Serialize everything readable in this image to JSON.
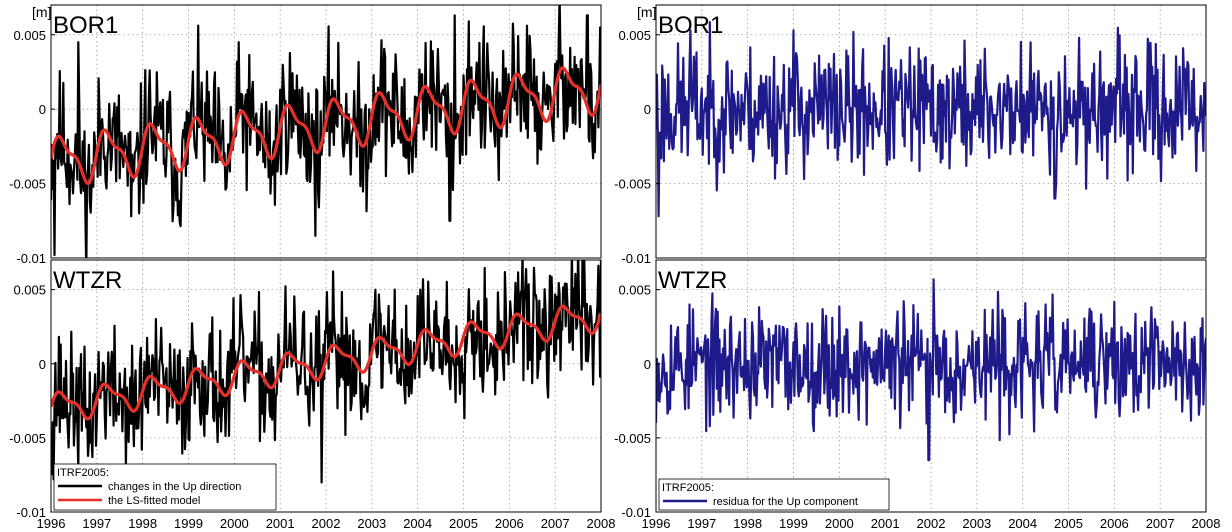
{
  "figure": {
    "y_unit": "[m]",
    "x_ticks": [
      "1996",
      "1997",
      "1998",
      "1999",
      "2000",
      "2001",
      "2002",
      "2003",
      "2004",
      "2005",
      "2006",
      "2007",
      "2008"
    ],
    "y_ticks": [
      "0.005",
      "0",
      "-0.005",
      "-0.01"
    ]
  },
  "colors": {
    "black_series": "#000000",
    "model_series": "#e8302a",
    "residual_series": "#1f1a8a",
    "grid": "#9a9a9a"
  },
  "chart_data": [
    {
      "type": "line",
      "panel": "top-left",
      "station": "BOR1",
      "ylabel": "[m]",
      "xlim": [
        1996,
        2008
      ],
      "ylim": [
        -0.01,
        0.007
      ],
      "grid": true,
      "series": [
        {
          "name": "changes in the Up direction",
          "color": "#000000",
          "kind": "noisy",
          "trend_start": -0.0035,
          "trend_end": 0.0015,
          "seasonal_amp": 0.0016,
          "noise": 0.0022,
          "seed": 11,
          "extremes": [
            [
              1996.08,
              -0.0098
            ],
            [
              1996.6,
              0.0045
            ],
            [
              1997.75,
              -0.0072
            ],
            [
              2001.85,
              -0.0066
            ],
            [
              2004.7,
              -0.0075
            ],
            [
              2004.8,
              0.0063
            ],
            [
              2007.7,
              0.0063
            ]
          ]
        },
        {
          "name": "the LS-fitted model",
          "color": "#e8302a",
          "kind": "smooth",
          "trend_start": -0.0035,
          "trend_end": 0.0015,
          "seasonal_amp": 0.0016
        }
      ]
    },
    {
      "type": "line",
      "panel": "top-right",
      "station": "BOR1",
      "ylabel": "[m]",
      "xlim": [
        1996,
        2008
      ],
      "ylim": [
        -0.01,
        0.007
      ],
      "grid": true,
      "series": [
        {
          "name": "residua for the Up component",
          "color": "#1f1a8a",
          "kind": "noisy",
          "trend_start": 0,
          "trend_end": 0,
          "seasonal_amp": 0,
          "noise": 0.0021,
          "seed": 23,
          "extremes": [
            [
              1996.05,
              -0.0072
            ],
            [
              1996.75,
              0.0053
            ],
            [
              1999.0,
              0.0053
            ],
            [
              2004.7,
              -0.006
            ]
          ]
        }
      ]
    },
    {
      "type": "line",
      "panel": "bottom-left",
      "station": "WTZR",
      "xlim": [
        1996,
        2008
      ],
      "ylim": [
        -0.01,
        0.007
      ],
      "grid": true,
      "series": [
        {
          "name": "changes in the Up direction",
          "color": "#000000",
          "kind": "noisy",
          "trend_start": -0.003,
          "trend_end": 0.0033,
          "seasonal_amp": 0.001,
          "noise": 0.0021,
          "seed": 37,
          "extremes": [
            [
              1996.05,
              -0.0078
            ],
            [
              2001.9,
              -0.008
            ],
            [
              2007.6,
              0.0078
            ],
            [
              2003.5,
              0.005
            ]
          ]
        },
        {
          "name": "the LS-fitted model",
          "color": "#e8302a",
          "kind": "smooth",
          "trend_start": -0.003,
          "trend_end": 0.0033,
          "seasonal_amp": 0.001
        }
      ],
      "legend": {
        "title": "ITRF2005:",
        "entries": [
          "changes in the Up direction",
          "the LS-fitted model"
        ],
        "position": "bottom-left"
      }
    },
    {
      "type": "line",
      "panel": "bottom-right",
      "station": "WTZR",
      "xlim": [
        1996,
        2008
      ],
      "ylim": [
        -0.01,
        0.007
      ],
      "grid": true,
      "series": [
        {
          "name": "residua for the Up component",
          "color": "#1f1a8a",
          "kind": "noisy",
          "trend_start": 0,
          "trend_end": 0,
          "seasonal_amp": 0,
          "noise": 0.0019,
          "seed": 53,
          "extremes": [
            [
              2001.95,
              -0.0065
            ],
            [
              2002.05,
              0.0057
            ]
          ]
        }
      ],
      "legend": {
        "title": "ITRF2005:",
        "entries": [
          "residua for the Up component"
        ],
        "position": "bottom-left"
      }
    }
  ]
}
